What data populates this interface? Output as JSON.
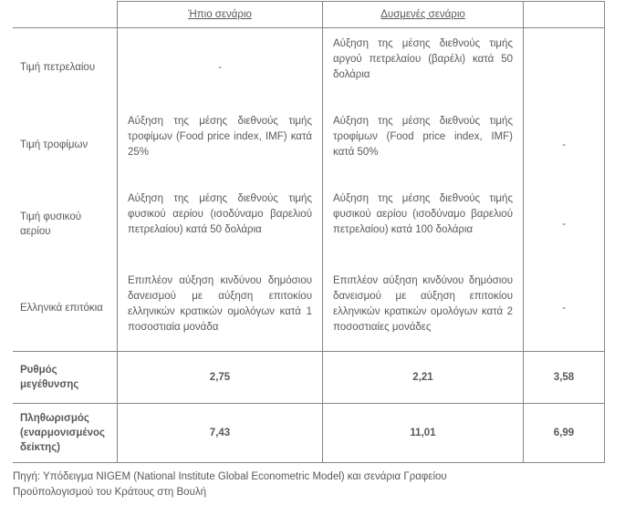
{
  "colors": {
    "text": "#595959",
    "border": "#858585",
    "background": "#ffffff"
  },
  "table": {
    "headers": {
      "label_col": "",
      "mild": "Ήπιο σενάριο",
      "adverse": "Δυσμενές σενάριο",
      "baseline": ""
    },
    "rows": [
      {
        "key": "oil",
        "label": "Τιμή πετρελαίου",
        "mild": "-",
        "adverse": "Αύξηση της μέσης διεθνούς τιμής αργού πετρελαίου (βαρέλι) κατά 50 δολάρια",
        "baseline": ""
      },
      {
        "key": "food",
        "label": "Τιμή τροφίμων",
        "mild": "Αύξηση της μέσης διεθνούς τιμής τροφίμων (Food price index, IMF) κατά 25%",
        "adverse": "Αύξηση της μέσης διεθνούς τιμής τροφίμων (Food price index, IMF) κατά 50%",
        "baseline": "-"
      },
      {
        "key": "gas",
        "label": "Τιμή φυσικού αερίου",
        "mild": "Αύξηση της μέσης διεθνούς τιμής φυσικού αερίου (ισοδύναμο βαρελιού πετρελαίου) κατά 50 δολάρια",
        "adverse": "Αύξηση της μέσης διεθνούς τιμής φυσικού αερίου (ισοδύναμο βαρελιού πετρελαίου) κατά 100 δολάρια",
        "baseline": "-"
      },
      {
        "key": "rates",
        "label": "Ελληνικά επιτόκια",
        "mild": "Επιπλέον αύξηση κινδύνου δημόσιου δανεισμού με αύξηση επιτοκίου ελληνικών κρατικών ομολόγων κατά 1 ποσοστιαία μονάδα",
        "adverse": "Επιπλέον αύξηση κινδύνου δημόσιου δανεισμού με αύξηση επιτοκίου ελληνικών κρατικών ομολόγων κατά 2 ποσοστιαίες μονάδες",
        "baseline": "-"
      },
      {
        "key": "growth",
        "label": "Ρυθμός μεγέθυνσης",
        "mild": "2,75",
        "adverse": "2,21",
        "baseline": "3,58"
      },
      {
        "key": "inflation",
        "label": "Πληθωρισμός (εναρμονισμένος δείκτης)",
        "mild": "7,43",
        "adverse": "11,01",
        "baseline": "6,99"
      }
    ]
  },
  "source_note": "Πηγή: Υπόδειγμα NIGEM (National Institute Global Econometric Model) και σενάρια Γραφείου Προϋπολογισμού του Κράτους στη Βουλή"
}
